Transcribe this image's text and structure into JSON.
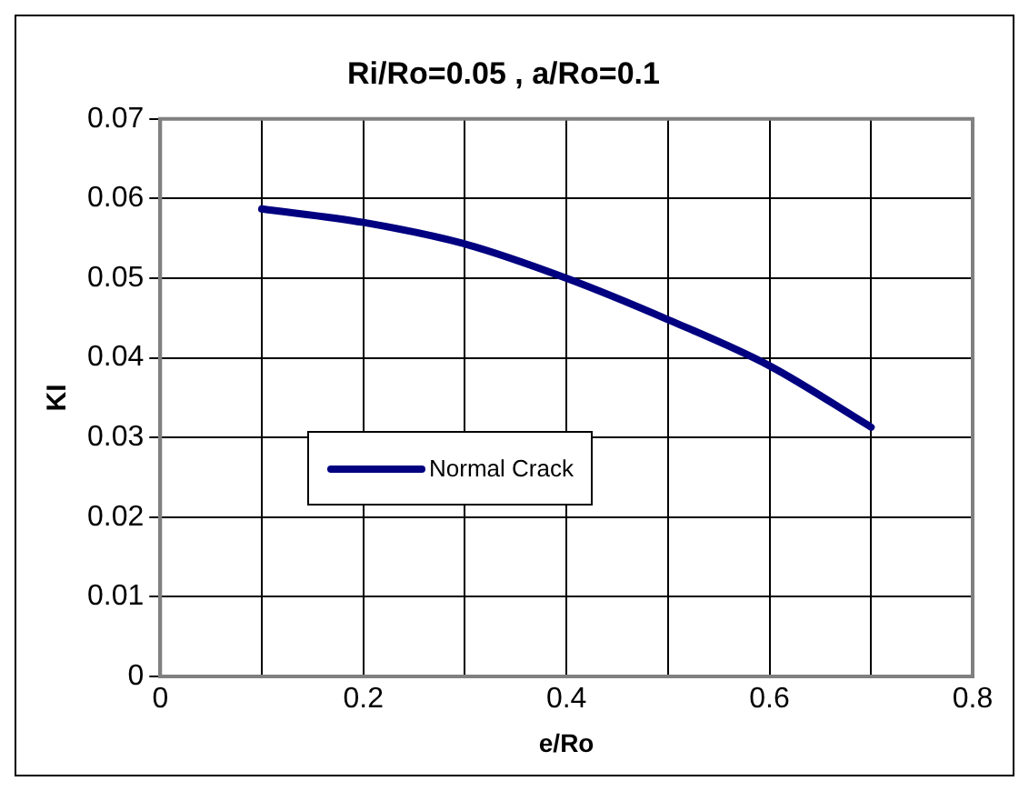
{
  "chart_data": {
    "type": "line",
    "title": "Ri/Ro=0.05 , a/Ro=0.1",
    "xlabel": "e/Ro",
    "ylabel": "KI",
    "x": [
      0.1,
      0.2,
      0.3,
      0.4,
      0.5,
      0.6,
      0.7
    ],
    "series": [
      {
        "name": "Normal Crack",
        "color": "#000080",
        "values": [
          0.0587,
          0.057,
          0.0543,
          0.05,
          0.0448,
          0.039,
          0.0313
        ]
      }
    ],
    "xlim": [
      0,
      0.8
    ],
    "xticks": [
      0,
      {
        "value": 0.1,
        "label": null
      },
      0.2,
      {
        "value": 0.3,
        "label": null
      },
      0.4,
      {
        "value": 0.5,
        "label": null
      },
      0.6,
      {
        "value": 0.7,
        "label": null
      },
      0.8
    ],
    "ylim": [
      0,
      0.07
    ],
    "yticks": [
      0,
      0.01,
      0.02,
      0.03,
      0.04,
      0.05,
      0.06,
      0.07
    ],
    "grid": true,
    "legend": "left",
    "marker": "none",
    "line_style": "solid"
  }
}
